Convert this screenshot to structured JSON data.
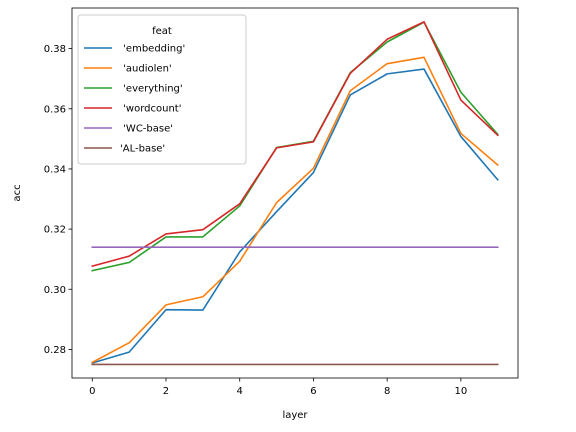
{
  "chart_data": {
    "type": "line",
    "xlabel": "layer",
    "ylabel": "acc",
    "xlim": [
      -0.55,
      11.55
    ],
    "ylim": [
      0.2705,
      0.3935
    ],
    "xticks": [
      0,
      2,
      4,
      6,
      8,
      10
    ],
    "xtick_labels": [
      "0",
      "2",
      "4",
      "6",
      "8",
      "10"
    ],
    "yticks": [
      0.28,
      0.3,
      0.32,
      0.34,
      0.36,
      0.38
    ],
    "ytick_labels": [
      "0.28",
      "0.30",
      "0.32",
      "0.34",
      "0.36",
      "0.38"
    ],
    "grid": false,
    "legend": {
      "title": "feat",
      "placement": "upper-left"
    },
    "x": [
      0,
      1,
      2,
      3,
      4,
      5,
      6,
      7,
      8,
      9,
      10,
      11
    ],
    "series": [
      {
        "name": " 'embedding'",
        "color": "#1f77b4",
        "values": [
          0.2755,
          0.2791,
          0.2932,
          0.2931,
          0.3124,
          0.3258,
          0.3388,
          0.3646,
          0.3716,
          0.3732,
          0.3508,
          0.3364
        ]
      },
      {
        "name": " 'audiolen'",
        "color": "#ff7f0e",
        "values": [
          0.2757,
          0.2822,
          0.2948,
          0.2975,
          0.3093,
          0.3288,
          0.3402,
          0.366,
          0.375,
          0.3771,
          0.3518,
          0.3413
        ]
      },
      {
        "name": " 'everything'",
        "color": "#2ca02c",
        "values": [
          0.3062,
          0.3089,
          0.3174,
          0.3174,
          0.3277,
          0.3471,
          0.3492,
          0.372,
          0.3822,
          0.3888,
          0.3655,
          0.3515
        ]
      },
      {
        "name": " 'wordcount'",
        "color": "#d62728",
        "values": [
          0.3077,
          0.311,
          0.3184,
          0.3198,
          0.3284,
          0.347,
          0.349,
          0.3718,
          0.3831,
          0.3889,
          0.3629,
          0.3512
        ]
      },
      {
        "name": " 'WC-base'",
        "color": "#9467bd",
        "values": [
          0.314,
          0.314,
          0.314,
          0.314,
          0.314,
          0.314,
          0.314,
          0.314,
          0.314,
          0.314,
          0.314,
          0.314
        ]
      },
      {
        "name": "'AL-base'",
        "color": "#8c564b",
        "values": [
          0.275,
          0.275,
          0.275,
          0.275,
          0.275,
          0.275,
          0.275,
          0.275,
          0.275,
          0.275,
          0.275,
          0.275
        ]
      }
    ]
  }
}
